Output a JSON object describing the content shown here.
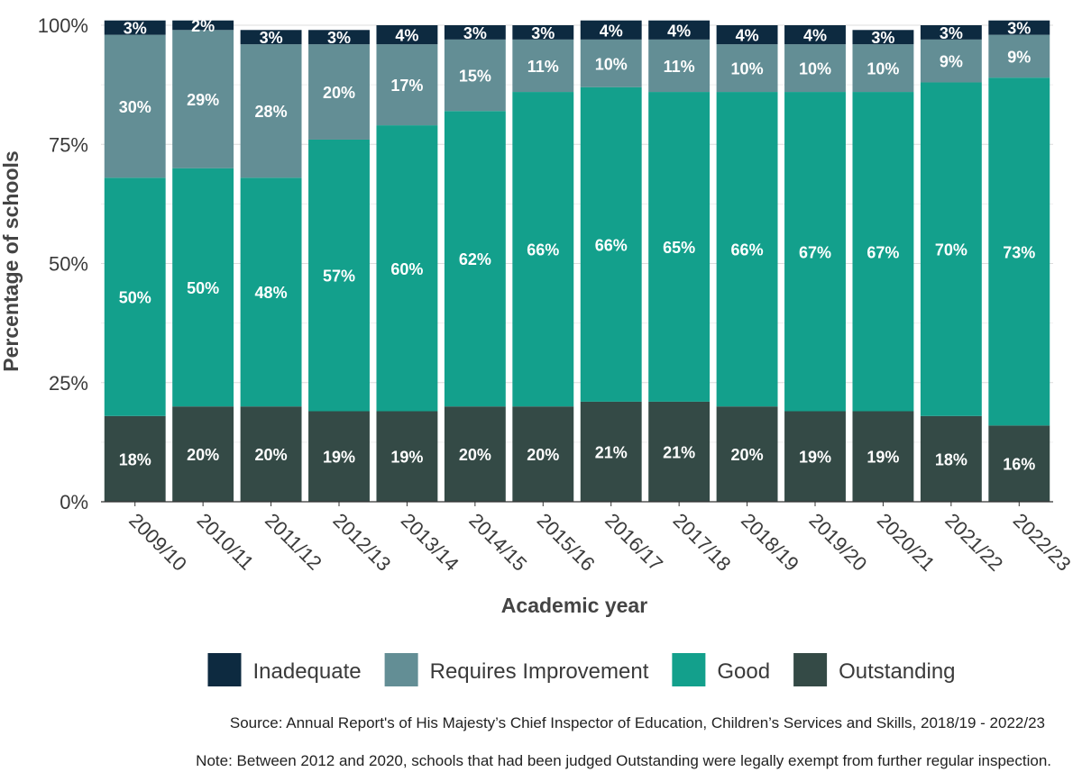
{
  "chart_data": {
    "type": "bar",
    "stacked": true,
    "title": "",
    "xlabel": "Academic year",
    "ylabel": "Percentage of schools",
    "ylim": [
      0,
      100
    ],
    "yticks": [
      "0%",
      "25%",
      "50%",
      "75%",
      "100%"
    ],
    "grid": true,
    "legend_position": "bottom",
    "categories": [
      "2009/10",
      "2010/11",
      "2011/12",
      "2012/13",
      "2013/14",
      "2014/15",
      "2015/16",
      "2016/17",
      "2017/18",
      "2018/19",
      "2019/20",
      "2020/21",
      "2021/22",
      "2022/23"
    ],
    "series": [
      {
        "name": "Outstanding",
        "color": "#344a46",
        "values": [
          18,
          20,
          20,
          19,
          19,
          20,
          20,
          21,
          21,
          20,
          19,
          19,
          18,
          16
        ]
      },
      {
        "name": "Good",
        "color": "#13a08c",
        "values": [
          50,
          50,
          48,
          57,
          60,
          62,
          66,
          66,
          65,
          66,
          67,
          67,
          70,
          73
        ]
      },
      {
        "name": "Requires Improvement",
        "color": "#638e95",
        "values": [
          30,
          29,
          28,
          20,
          17,
          15,
          11,
          10,
          11,
          10,
          10,
          10,
          9,
          9
        ]
      },
      {
        "name": "Inadequate",
        "color": "#0d2a40",
        "values": [
          3,
          2,
          3,
          3,
          4,
          3,
          3,
          4,
          4,
          4,
          4,
          3,
          3,
          3
        ]
      }
    ],
    "legend_order": [
      "Inadequate",
      "Requires Improvement",
      "Good",
      "Outstanding"
    ]
  },
  "notes": {
    "source": "Source: Annual Report's of His Majesty’s Chief Inspector of Education, Children’s Services and Skills, 2018/19 - 2022/23",
    "note": "Note: Between 2012 and 2020, schools that had been judged Outstanding were legally exempt from further regular inspection."
  }
}
